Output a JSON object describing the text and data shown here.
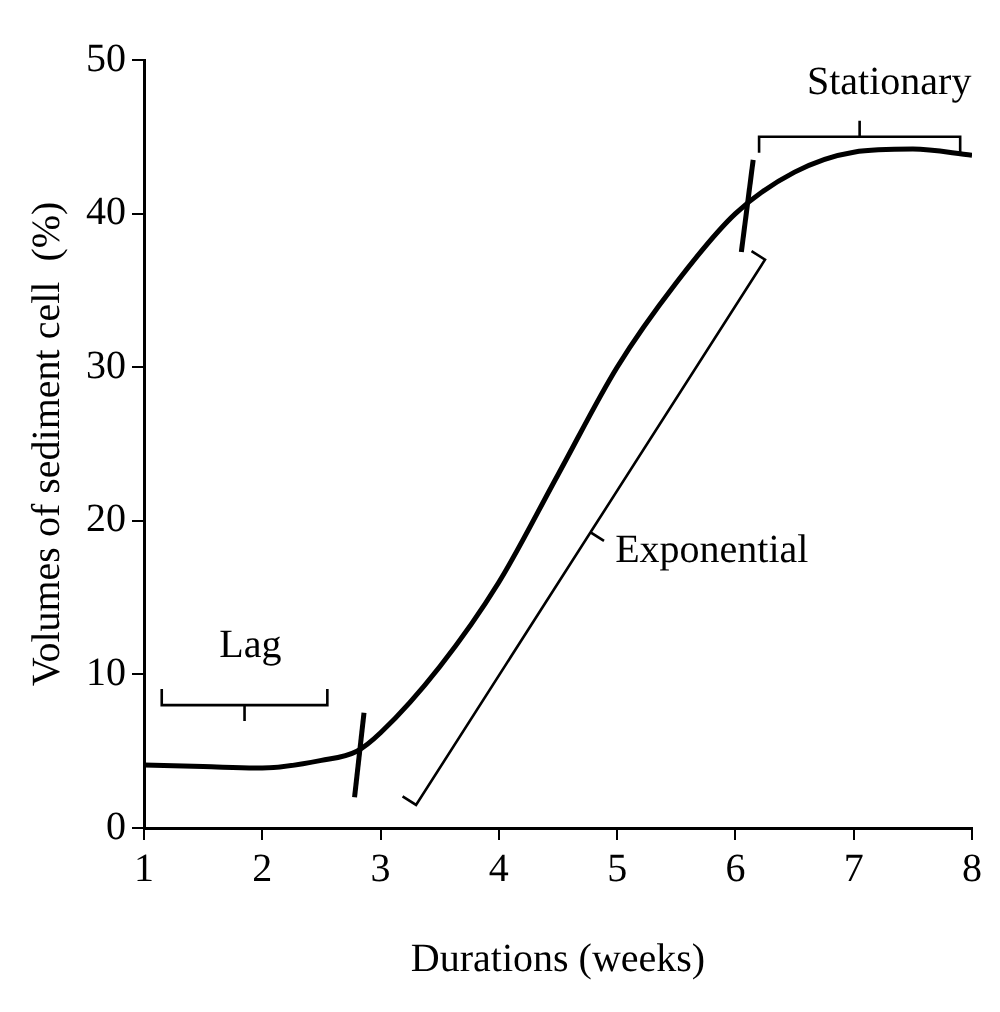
{
  "chart_data": {
    "type": "line",
    "xlabel": "Durations (weeks)",
    "ylabel": "Volumes of sediment cell  (%)",
    "x": [
      1,
      1.5,
      2,
      2.5,
      2.8,
      3,
      3.5,
      4,
      4.5,
      5,
      5.5,
      6,
      6.5,
      7,
      7.5,
      8
    ],
    "series": [
      {
        "color": "#000000",
        "values": [
          4.1,
          4.0,
          3.9,
          4.4,
          5.0,
          6.2,
          10.5,
          16,
          23,
          30,
          35.5,
          40,
          42.7,
          44,
          44.2,
          43.8
        ]
      }
    ],
    "xlim": [
      1,
      8
    ],
    "xticks": [
      1,
      2,
      3,
      4,
      5,
      6,
      7,
      8
    ],
    "ylim": [
      0,
      50
    ],
    "yticks": [
      0,
      10,
      20,
      30,
      40,
      50
    ],
    "grid": false,
    "legend": false,
    "marker": "none",
    "line_style": "solid",
    "annotations": [
      "Lag",
      "Exponential",
      "Stationary"
    ]
  }
}
